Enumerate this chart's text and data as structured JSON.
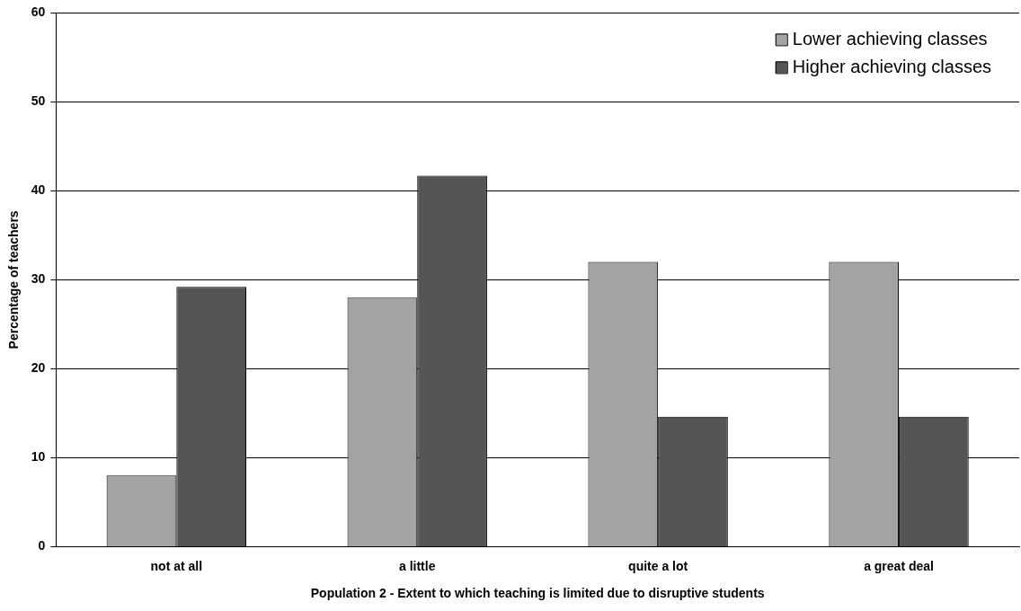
{
  "chart_data": {
    "type": "bar",
    "xlabel": "Population 2 - Extent to which teaching is limited due to disruptive students",
    "ylabel": "Percentage of teachers",
    "categories": [
      "not at all",
      "a little",
      "quite a lot",
      "a great deal"
    ],
    "series": [
      {
        "name": "Lower achieving classes",
        "color": "#a3a3a3",
        "values": [
          8.0,
          28.0,
          32.0,
          32.0
        ]
      },
      {
        "name": "Higher achieving classes",
        "color": "#555555",
        "values": [
          29.2,
          41.7,
          14.6,
          14.6
        ]
      }
    ],
    "ylim": [
      0,
      60
    ],
    "yticks": [
      0,
      10,
      20,
      30,
      40,
      50,
      60
    ],
    "grid": "y",
    "legend": "top right"
  }
}
